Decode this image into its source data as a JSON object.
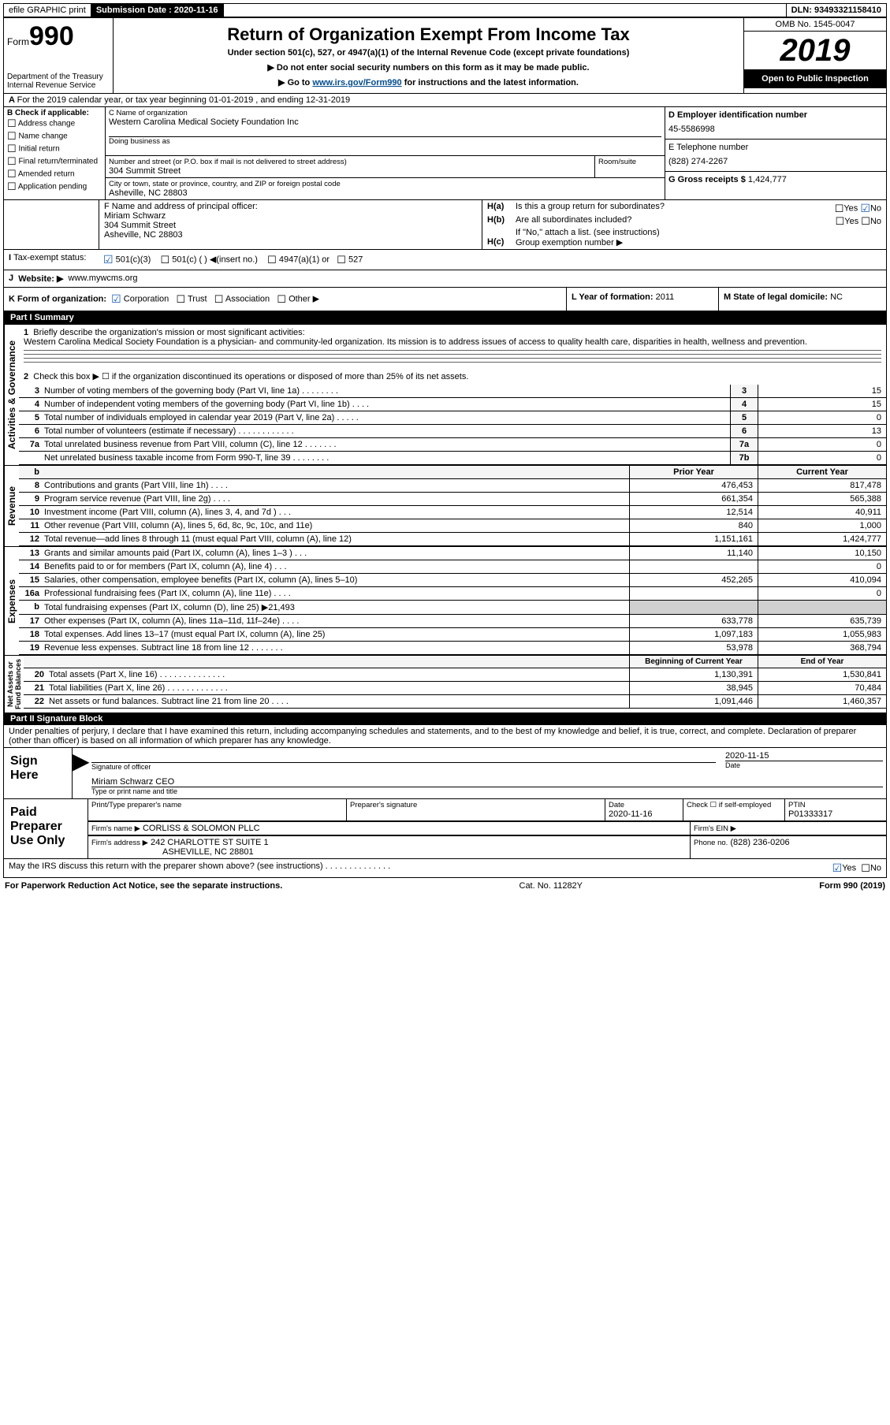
{
  "top": {
    "efile": "efile GRAPHIC print",
    "sub_label": "Submission Date : 2020-11-16",
    "dln": "DLN: 93493321158410"
  },
  "header": {
    "form": "Form",
    "form_no": "990",
    "dept": "Department of the Treasury\nInternal Revenue Service",
    "title": "Return of Organization Exempt From Income Tax",
    "subtitle": "Under section 501(c), 527, or 4947(a)(1) of the Internal Revenue Code (except private foundations)",
    "note1": "Do not enter social security numbers on this form as it may be made public.",
    "note2_pre": "Go to ",
    "note2_link": "www.irs.gov/Form990",
    "note2_post": " for instructions and the latest information.",
    "omb": "OMB No. 1545-0047",
    "year": "2019",
    "inspection": "Open to Public Inspection"
  },
  "lineA": "For the 2019 calendar year, or tax year beginning 01-01-2019    , and ending 12-31-2019",
  "boxB": {
    "lbl": "B Check if applicable:",
    "opts": [
      "Address change",
      "Name change",
      "Initial return",
      "Final return/terminated",
      "Amended return",
      "Application pending"
    ]
  },
  "boxC": {
    "name_lbl": "C Name of organization",
    "name": "Western Carolina Medical Society Foundation Inc",
    "dba_lbl": "Doing business as",
    "addr_lbl": "Number and street (or P.O. box if mail is not delivered to street address)",
    "room_lbl": "Room/suite",
    "addr": "304 Summit Street",
    "city_lbl": "City or town, state or province, country, and ZIP or foreign postal code",
    "city": "Asheville, NC  28803"
  },
  "boxD": {
    "lbl": "D Employer identification number",
    "val": "45-5586998"
  },
  "boxE": {
    "lbl": "E Telephone number",
    "val": "(828) 274-2267"
  },
  "boxG": {
    "lbl": "G Gross receipts $",
    "val": "1,424,777"
  },
  "boxF": {
    "lbl": "F  Name and address of principal officer:",
    "name": "Miriam Schwarz",
    "addr1": "304 Summit Street",
    "addr2": "Asheville, NC  28803"
  },
  "boxH": {
    "a": "Is this a group return for subordinates?",
    "b": "Are all subordinates included?",
    "b_note": "If \"No,\" attach a list. (see instructions)",
    "c": "Group exemption number ▶"
  },
  "boxI": {
    "lbl": "Tax-exempt status:",
    "o1": "501(c)(3)",
    "o2": "501(c) (  ) ◀(insert no.)",
    "o3": "4947(a)(1) or",
    "o4": "527"
  },
  "boxJ": {
    "lbl": "Website: ▶",
    "val": "www.mywcms.org"
  },
  "boxK": {
    "lbl": "K Form of organization:",
    "o1": "Corporation",
    "o2": "Trust",
    "o3": "Association",
    "o4": "Other ▶"
  },
  "boxL": {
    "lbl": "L Year of formation:",
    "val": "2011"
  },
  "boxM": {
    "lbl": "M State of legal domicile:",
    "val": "NC"
  },
  "part1": {
    "title": "Part I      Summary",
    "q1_lbl": "Briefly describe the organization's mission or most significant activities:",
    "q1_val": "Western Carolina Medical Society Foundation is a physician- and community-led organization. Its mission is to address issues of access to quality health care, disparities in health, wellness and prevention.",
    "q2": "Check this box ▶ ☐  if the organization discontinued its operations or disposed of more than 25% of its net assets."
  },
  "gov_lines": [
    {
      "n": "3",
      "d": "Number of voting members of the governing body (Part VI, line 1a)   .    .    .    .    .    .    .    .",
      "b": "3",
      "v": "15"
    },
    {
      "n": "4",
      "d": "Number of independent voting members of the governing body (Part VI, line 1b)   .    .    .    .",
      "b": "4",
      "v": "15"
    },
    {
      "n": "5",
      "d": "Total number of individuals employed in calendar year 2019 (Part V, line 2a)   .    .    .    .    .",
      "b": "5",
      "v": "0"
    },
    {
      "n": "6",
      "d": "Total number of volunteers (estimate if necessary)    .    .    .    .    .    .    .    .    .    .    .    .",
      "b": "6",
      "v": "13"
    },
    {
      "n": "7a",
      "d": "Total unrelated business revenue from Part VIII, column (C), line 12   .    .    .    .    .    .    .",
      "b": "7a",
      "v": "0"
    },
    {
      "n": "",
      "d": "Net unrelated business taxable income from Form 990-T, line 39    .    .    .    .    .    .    .    .",
      "b": "7b",
      "v": "0"
    }
  ],
  "rev_hdr": {
    "py": "Prior Year",
    "cy": "Current Year"
  },
  "rev_lines": [
    {
      "n": "8",
      "d": "Contributions and grants (Part VIII, line 1h)   .    .    .    .",
      "py": "476,453",
      "cy": "817,478"
    },
    {
      "n": "9",
      "d": "Program service revenue (Part VIII, line 2g)   .    .    .    .",
      "py": "661,354",
      "cy": "565,388"
    },
    {
      "n": "10",
      "d": "Investment income (Part VIII, column (A), lines 3, 4, and 7d )   .    .    .",
      "py": "12,514",
      "cy": "40,911"
    },
    {
      "n": "11",
      "d": "Other revenue (Part VIII, column (A), lines 5, 6d, 8c, 9c, 10c, and 11e)",
      "py": "840",
      "cy": "1,000"
    },
    {
      "n": "12",
      "d": "Total revenue—add lines 8 through 11 (must equal Part VIII, column (A), line 12)",
      "py": "1,151,161",
      "cy": "1,424,777"
    }
  ],
  "exp_lines": [
    {
      "n": "13",
      "d": "Grants and similar amounts paid (Part IX, column (A), lines 1–3 )   .    .    .",
      "py": "11,140",
      "cy": "10,150"
    },
    {
      "n": "14",
      "d": "Benefits paid to or for members (Part IX, column (A), line 4)   .    .    .",
      "py": "",
      "cy": "0"
    },
    {
      "n": "15",
      "d": "Salaries, other compensation, employee benefits (Part IX, column (A), lines 5–10)",
      "py": "452,265",
      "cy": "410,094"
    },
    {
      "n": "16a",
      "d": "Professional fundraising fees (Part IX, column (A), line 11e)   .    .    .    .",
      "py": "",
      "cy": "0"
    },
    {
      "n": "b",
      "d": "Total fundraising expenses (Part IX, column (D), line 25) ▶21,493",
      "py": "shade",
      "cy": "shade"
    },
    {
      "n": "17",
      "d": "Other expenses (Part IX, column (A), lines 11a–11d, 11f–24e)   .    .    .    .",
      "py": "633,778",
      "cy": "635,739"
    },
    {
      "n": "18",
      "d": "Total expenses. Add lines 13–17 (must equal Part IX, column (A), line 25)",
      "py": "1,097,183",
      "cy": "1,055,983"
    },
    {
      "n": "19",
      "d": "Revenue less expenses. Subtract line 18 from line 12   .    .    .    .    .    .    .",
      "py": "53,978",
      "cy": "368,794"
    }
  ],
  "net_hdr": {
    "b": "Beginning of Current Year",
    "e": "End of Year"
  },
  "net_lines": [
    {
      "n": "20",
      "d": "Total assets (Part X, line 16)  .    .    .    .    .    .    .    .    .    .    .    .    .    .",
      "py": "1,130,391",
      "cy": "1,530,841"
    },
    {
      "n": "21",
      "d": "Total liabilities (Part X, line 26)  .    .    .    .    .    .    .    .    .    .    .    .    .",
      "py": "38,945",
      "cy": "70,484"
    },
    {
      "n": "22",
      "d": "Net assets or fund balances. Subtract line 21 from line 20   .    .    .    .",
      "py": "1,091,446",
      "cy": "1,460,357"
    }
  ],
  "part2": {
    "title": "Part II     Signature Block",
    "decl": "Under penalties of perjury, I declare that I have examined this return, including accompanying schedules and statements, and to the best of my knowledge and belief, it is true, correct, and complete. Declaration of preparer (other than officer) is based on all information of which preparer has any knowledge."
  },
  "sign": {
    "here": "Sign Here",
    "sig_of_officer": "Signature of officer",
    "date_lbl": "Date",
    "date": "2020-11-15",
    "name": "Miriam Schwarz CEO",
    "name_lbl": "Type or print name and title"
  },
  "paid": {
    "title": "Paid Preparer Use Only",
    "h1": "Print/Type preparer's name",
    "h2": "Preparer's signature",
    "h3": "Date",
    "h3v": "2020-11-16",
    "h4": "Check ☐  if self-employed",
    "h5": "PTIN",
    "h5v": "P01333317",
    "firm_lbl": "Firm's name     ▶",
    "firm": "CORLISS & SOLOMON PLLC",
    "ein_lbl": "Firm's EIN ▶",
    "addr_lbl": "Firm's address ▶",
    "addr1": "242 CHARLOTTE ST SUITE 1",
    "addr2": "ASHEVILLE, NC  28801",
    "phone_lbl": "Phone no.",
    "phone": "(828) 236-0206"
  },
  "discuss": "May the IRS discuss this return with the preparer shown above? (see instructions)    .    .    .    .    .    .    .    .    .    .    .    .    .    .",
  "footer": {
    "l": "For Paperwork Reduction Act Notice, see the separate instructions.",
    "c": "Cat. No. 11282Y",
    "r": "Form 990 (2019)"
  }
}
